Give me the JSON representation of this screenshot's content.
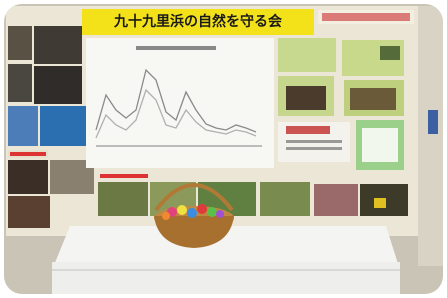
{
  "banner": {
    "title": "九十九里浜の自然を守る会"
  }
}
